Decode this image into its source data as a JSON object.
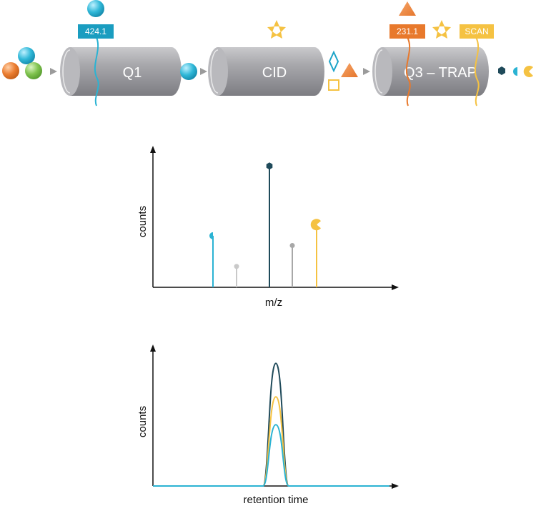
{
  "stages": [
    {
      "name": "Q1",
      "tag": "424.1"
    },
    {
      "name": "CID"
    },
    {
      "name": "Q3 – TRAP",
      "tags": [
        "231.1",
        "SCAN"
      ]
    }
  ],
  "colors": {
    "cyan": "#2bb3d3",
    "orange": "#e8792c",
    "green": "#7cc04b",
    "yellow": "#f5c242",
    "dark": "#1f4a5a",
    "gray": "#a8a8a8",
    "cylinder": "#a7a7ab"
  },
  "chart_data": [
    {
      "type": "bar",
      "xlabel": "m/z",
      "ylabel": "counts",
      "series": [
        {
          "values": [
            0.37
          ],
          "color": "cyan"
        },
        {
          "values": [
            0.15
          ],
          "color": "lightgray"
        },
        {
          "values": [
            0.87
          ],
          "color": "dark"
        },
        {
          "values": [
            0.3
          ],
          "color": "gray"
        },
        {
          "values": [
            0.45
          ],
          "color": "yellow"
        }
      ]
    },
    {
      "type": "line",
      "xlabel": "retention time",
      "ylabel": "counts",
      "series": [
        {
          "peak": 0.88,
          "color": "dark"
        },
        {
          "peak": 0.64,
          "color": "yellow"
        },
        {
          "peak": 0.44,
          "color": "cyan"
        }
      ]
    }
  ]
}
